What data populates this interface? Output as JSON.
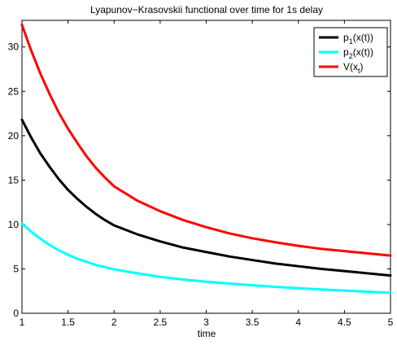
{
  "chart_data": {
    "type": "line",
    "title": "Lyapunov−Krasovskii functional over time for 1s delay",
    "xlabel": "time",
    "ylabel": "",
    "xlim": [
      1,
      5
    ],
    "ylim": [
      0,
      33
    ],
    "x_ticks": [
      "1",
      "1.5",
      "2",
      "2.5",
      "3",
      "3.5",
      "4",
      "4.5",
      "5"
    ],
    "y_ticks": [
      "0",
      "5",
      "10",
      "15",
      "20",
      "25",
      "30"
    ],
    "grid": false,
    "legend_position": "top-right",
    "x": [
      1,
      1.1,
      1.2,
      1.3,
      1.4,
      1.5,
      1.6,
      1.7,
      1.8,
      1.9,
      2,
      2.25,
      2.5,
      2.75,
      3,
      3.25,
      3.5,
      3.75,
      4,
      4.25,
      4.5,
      4.75,
      5
    ],
    "series": [
      {
        "name": "p1(x(t))",
        "legend_main": "p",
        "legend_sub": "1",
        "legend_rest": "(x(t))",
        "color": "#000000",
        "values": [
          21.8,
          19.8,
          18.0,
          16.5,
          15.1,
          13.9,
          12.9,
          12.0,
          11.2,
          10.5,
          9.9,
          8.9,
          8.1,
          7.4,
          6.9,
          6.4,
          6.0,
          5.6,
          5.3,
          5.0,
          4.75,
          4.5,
          4.25
        ]
      },
      {
        "name": "p2(x(t))",
        "legend_main": "p",
        "legend_sub": "2",
        "legend_rest": "(x(t))",
        "color": "#00ffff",
        "values": [
          10.1,
          9.2,
          8.4,
          7.7,
          7.1,
          6.6,
          6.15,
          5.8,
          5.45,
          5.2,
          4.95,
          4.5,
          4.1,
          3.8,
          3.55,
          3.35,
          3.15,
          2.98,
          2.82,
          2.68,
          2.55,
          2.43,
          2.3
        ]
      },
      {
        "name": "V(xt)",
        "legend_main": "V(x",
        "legend_sub": "t",
        "legend_rest": ")",
        "color": "#ff0000",
        "values": [
          32.5,
          29.6,
          27.0,
          24.7,
          22.6,
          20.8,
          19.2,
          17.7,
          16.4,
          15.3,
          14.3,
          12.7,
          11.5,
          10.5,
          9.7,
          9.0,
          8.45,
          8.0,
          7.6,
          7.25,
          7.0,
          6.75,
          6.5
        ]
      }
    ]
  }
}
